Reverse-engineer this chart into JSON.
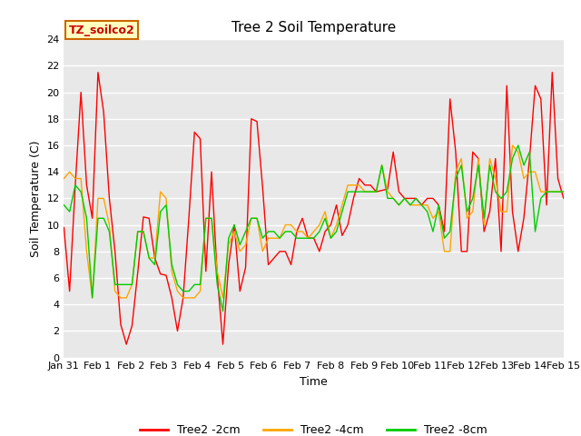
{
  "title": "Tree 2 Soil Temperature",
  "xlabel": "Time",
  "ylabel": "Soil Temperature (C)",
  "annotation_text": "TZ_soilco2",
  "ylim": [
    0,
    24
  ],
  "yticks": [
    0,
    2,
    4,
    6,
    8,
    10,
    12,
    14,
    16,
    18,
    20,
    22,
    24
  ],
  "xtick_labels": [
    "Jan 31",
    "Feb 1",
    "Feb 2",
    "Feb 3",
    "Feb 4",
    "Feb 5",
    "Feb 6",
    "Feb 7",
    "Feb 8",
    "Feb 9",
    "Feb 10",
    "Feb 11",
    "Feb 12",
    "Feb 13",
    "Feb 14",
    "Feb 15"
  ],
  "colors": {
    "red": "#FF0000",
    "orange": "#FFA500",
    "green": "#00CC00",
    "background": "#E8E8E8",
    "annotation_bg": "#FFFFC0",
    "annotation_border": "#CC6600",
    "annotation_text": "#CC0000"
  },
  "legend_labels": [
    "Tree2 -2cm",
    "Tree2 -4cm",
    "Tree2 -8cm"
  ],
  "background_color": "#E8E8E8",
  "fig_background": "#FFFFFF",
  "series": {
    "red_2cm": [
      9.8,
      5.0,
      13.0,
      20.0,
      13.0,
      10.5,
      21.5,
      18.5,
      12.0,
      8.0,
      2.5,
      1.0,
      2.4,
      6.4,
      10.6,
      10.5,
      7.5,
      6.3,
      6.2,
      4.5,
      2.0,
      4.5,
      10.5,
      17.0,
      16.5,
      6.5,
      14.0,
      6.2,
      1.0,
      7.0,
      10.0,
      5.0,
      6.8,
      18.0,
      17.8,
      12.8,
      7.0,
      7.5,
      8.0,
      8.0,
      7.0,
      9.5,
      10.5,
      9.0,
      9.0,
      8.0,
      9.5,
      10.0,
      11.5,
      9.2,
      10.0,
      12.0,
      13.5,
      13.0,
      13.0,
      12.5,
      12.6,
      12.7,
      15.5,
      12.5,
      12.0,
      12.0,
      12.0,
      11.5,
      12.0,
      12.0,
      11.5,
      9.5,
      19.5,
      15.5,
      8.0,
      8.0,
      15.5,
      15.0,
      9.5,
      11.0,
      15.0,
      8.0,
      20.5,
      11.0,
      8.0,
      10.5,
      15.0,
      20.5,
      19.5,
      11.5,
      21.5,
      13.5,
      12.0
    ],
    "orange_4cm": [
      13.5,
      14.0,
      13.5,
      13.5,
      8.0,
      4.5,
      12.0,
      12.0,
      10.0,
      5.0,
      4.5,
      4.5,
      5.5,
      9.5,
      9.5,
      7.5,
      7.5,
      12.5,
      12.0,
      6.5,
      5.0,
      4.5,
      4.5,
      4.5,
      5.0,
      10.5,
      10.5,
      6.5,
      4.5,
      8.5,
      9.5,
      8.0,
      8.5,
      10.5,
      10.5,
      8.0,
      9.0,
      9.0,
      9.0,
      10.0,
      10.0,
      9.5,
      9.5,
      9.0,
      9.5,
      10.0,
      11.0,
      9.0,
      10.0,
      11.5,
      13.0,
      13.0,
      13.0,
      12.5,
      12.5,
      12.5,
      14.5,
      12.5,
      12.0,
      11.5,
      12.0,
      11.5,
      11.5,
      11.5,
      11.5,
      10.5,
      11.0,
      8.0,
      8.0,
      14.0,
      15.0,
      10.5,
      11.0,
      15.0,
      10.0,
      15.0,
      13.5,
      11.0,
      11.0,
      16.0,
      15.5,
      13.5,
      14.0,
      14.0,
      12.5,
      12.5,
      12.5,
      12.5,
      12.5
    ],
    "green_8cm": [
      11.5,
      11.0,
      13.0,
      12.5,
      10.5,
      4.5,
      10.5,
      10.5,
      9.5,
      5.5,
      5.5,
      5.5,
      5.5,
      9.5,
      9.5,
      7.5,
      7.0,
      11.0,
      11.5,
      7.0,
      5.5,
      5.0,
      5.0,
      5.5,
      5.5,
      10.5,
      10.5,
      5.5,
      3.5,
      9.0,
      10.0,
      8.5,
      9.5,
      10.5,
      10.5,
      9.0,
      9.5,
      9.5,
      9.0,
      9.5,
      9.5,
      9.0,
      9.0,
      9.0,
      9.0,
      9.5,
      10.5,
      9.0,
      9.5,
      11.0,
      12.5,
      12.5,
      12.5,
      12.5,
      12.5,
      12.5,
      14.5,
      12.0,
      12.0,
      11.5,
      12.0,
      11.5,
      12.0,
      11.5,
      11.0,
      9.5,
      11.5,
      9.0,
      9.5,
      13.5,
      14.5,
      11.0,
      12.0,
      14.5,
      10.5,
      14.5,
      12.5,
      12.0,
      12.5,
      15.0,
      16.0,
      14.5,
      15.5,
      9.5,
      12.0,
      12.5,
      12.5,
      12.5,
      12.5
    ]
  }
}
